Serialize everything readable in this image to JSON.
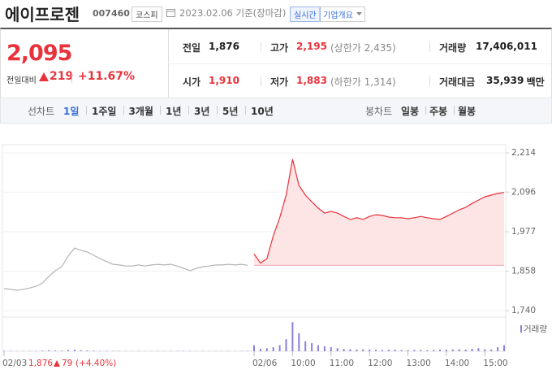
{
  "header": {
    "title": "에이프로젠",
    "code": "007460",
    "market": "코스피",
    "date": "2023.02.06 기준(장마감)",
    "realtime": "실시간",
    "company": "기업개요"
  },
  "quote": {
    "price": "2,095",
    "change_label": "전일대비",
    "change": "219",
    "change_pct": "+11.67%"
  },
  "summary": [
    [
      {
        "label": "전일",
        "value": "1,876"
      },
      {
        "label": "고가",
        "value": "2,195",
        "note": "(상한가 2,435)"
      },
      {
        "label": "거래량",
        "value": "17,406,011"
      }
    ],
    [
      {
        "label": "시가",
        "value": "1,910"
      },
      {
        "label": "저가",
        "value": "1,883",
        "note": "(하한가 1,314)"
      },
      {
        "label": "거래대금",
        "value": "35,939",
        "unit": "백만"
      }
    ]
  ],
  "tabs": {
    "line_label": "선차트",
    "line": [
      "1일",
      "1주일",
      "3개월",
      "1년",
      "3년",
      "5년",
      "10년"
    ],
    "candle_label": "봉차트",
    "candle": [
      "일봉",
      "주봉",
      "월봉"
    ]
  },
  "chart_data": {
    "type": "line",
    "categories": [
      "02/03",
      null,
      null,
      null,
      null,
      null,
      null,
      null,
      null,
      null,
      null,
      null,
      null,
      null,
      null,
      null,
      null,
      null,
      null,
      null,
      null,
      null,
      null,
      null,
      null,
      null,
      null,
      null,
      null,
      null,
      null,
      null,
      null,
      null,
      null,
      null,
      null,
      null,
      null,
      "02/06",
      null,
      null,
      null,
      null,
      null,
      "10:00",
      null,
      null,
      null,
      null,
      null,
      "11:00",
      null,
      null,
      null,
      null,
      null,
      "12:00",
      null,
      null,
      null,
      null,
      null,
      "13:00",
      null,
      null,
      null,
      null,
      null,
      "14:00",
      null,
      null,
      null,
      null,
      null,
      "15:00",
      null,
      null,
      null
    ],
    "series": [
      {
        "color": "#b4b4b4",
        "values": [
          1806,
          1804,
          1801,
          1804,
          1808,
          1813,
          1823,
          1843,
          1860,
          1872,
          1904,
          1928,
          1921,
          1916,
          1906,
          1896,
          1887,
          1879,
          1877,
          1874,
          1874,
          1877,
          1874,
          1877,
          1879,
          1877,
          1879,
          1874,
          1867,
          1860,
          1867,
          1872,
          1874,
          1877,
          1877,
          1879,
          1877,
          1879,
          1876,
          null,
          null,
          null,
          null,
          null,
          null,
          null,
          null,
          null,
          null,
          null,
          null,
          null,
          null,
          null,
          null,
          null,
          null,
          null,
          null,
          null,
          null,
          null,
          null,
          null,
          null,
          null,
          null,
          null,
          null,
          null,
          null,
          null,
          null,
          null,
          null,
          null,
          null,
          null,
          null
        ]
      },
      {
        "color": "#e8323c",
        "fill": "#fde4e5",
        "values": [
          null,
          null,
          null,
          null,
          null,
          null,
          null,
          null,
          null,
          null,
          null,
          null,
          null,
          null,
          null,
          null,
          null,
          null,
          null,
          null,
          null,
          null,
          null,
          null,
          null,
          null,
          null,
          null,
          null,
          null,
          null,
          null,
          null,
          null,
          null,
          null,
          null,
          null,
          null,
          1910,
          1883,
          1896,
          1965,
          2019,
          2087,
          2195,
          2116,
          2087,
          2067,
          2048,
          2033,
          2038,
          2033,
          2023,
          2014,
          2019,
          2014,
          2023,
          2028,
          2026,
          2021,
          2019,
          2019,
          2016,
          2019,
          2023,
          2019,
          2016,
          2014,
          2023,
          2033,
          2043,
          2050,
          2062,
          2072,
          2082,
          2087,
          2092,
          2095
        ]
      }
    ],
    "baseline": 1876,
    "ylim": [
      1740,
      2214
    ],
    "yticks": [
      {
        "value": 1740,
        "label": "1,740"
      },
      {
        "value": 1858,
        "label": "1,858"
      },
      {
        "value": 1977,
        "label": "1,977"
      },
      {
        "value": 2096,
        "label": "2,096"
      },
      {
        "value": 2214,
        "label": "2,214"
      }
    ],
    "grid": true,
    "volume": {
      "label": "거래량",
      "color": "#8e7fd6",
      "ylim": [
        0,
        1500000
      ],
      "values": [
        20000,
        15000,
        10000,
        12000,
        15000,
        20000,
        30000,
        50000,
        40000,
        30000,
        60000,
        80000,
        50000,
        40000,
        30000,
        20000,
        20000,
        15000,
        15000,
        10000,
        10000,
        12000,
        10000,
        10000,
        15000,
        10000,
        10000,
        12000,
        20000,
        15000,
        10000,
        10000,
        12000,
        10000,
        10000,
        15000,
        10000,
        12000,
        20000,
        300000,
        120000,
        150000,
        200000,
        300000,
        600000,
        1450000,
        900000,
        500000,
        400000,
        300000,
        250000,
        200000,
        150000,
        120000,
        100000,
        90000,
        100000,
        80000,
        70000,
        60000,
        70000,
        80000,
        60000,
        50000,
        70000,
        60000,
        50000,
        60000,
        80000,
        70000,
        90000,
        100000,
        80000,
        120000,
        150000,
        100000,
        90000,
        200000,
        300000
      ]
    }
  },
  "footer": {
    "close": "1,876",
    "change": "79",
    "change_pct": "(+4.40%)"
  }
}
